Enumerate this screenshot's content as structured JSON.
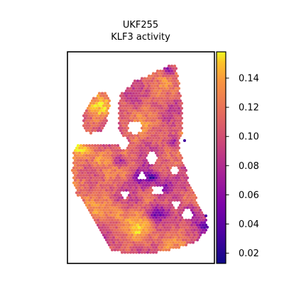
{
  "chart_data": {
    "type": "scatter",
    "title": "UKF255",
    "subtitle": "KLF3 activity",
    "xlabel": "",
    "ylabel": "",
    "grid": false,
    "colormap": "plasma",
    "colorbar": {
      "range": [
        0.013,
        0.158
      ],
      "ticks": [
        0.02,
        0.04,
        0.06,
        0.08,
        0.1,
        0.12,
        0.14
      ],
      "tick_labels": [
        "0.02",
        "0.04",
        "0.06",
        "0.08",
        "0.10",
        "0.12",
        "0.14"
      ]
    },
    "value_summary": {
      "typical": 0.11,
      "low_patches": 0.05,
      "high_patches": 0.14
    }
  }
}
